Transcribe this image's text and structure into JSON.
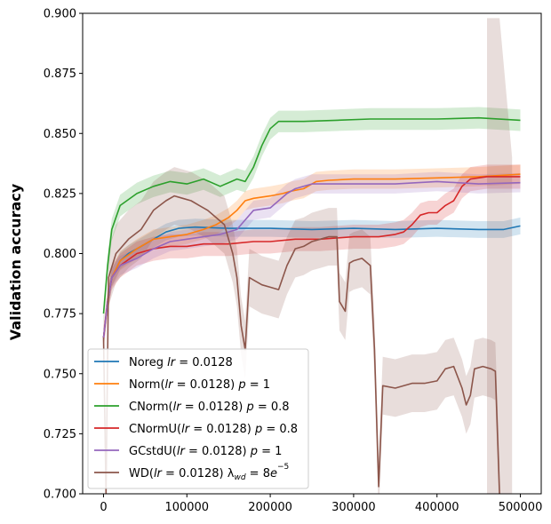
{
  "chart_data": {
    "type": "line",
    "title": "",
    "xlabel": "",
    "ylabel": "Validation accuracy",
    "xlim": [
      -25000,
      525000
    ],
    "ylim": [
      0.7,
      0.9
    ],
    "xticks": [
      0,
      100000,
      200000,
      300000,
      400000,
      500000
    ],
    "xtick_labels": [
      "0",
      "100000",
      "200000",
      "300000",
      "400000",
      "500000"
    ],
    "yticks": [
      0.7,
      0.725,
      0.75,
      0.775,
      0.8,
      0.825,
      0.85,
      0.875,
      0.9
    ],
    "ytick_labels": [
      "0.700",
      "0.725",
      "0.750",
      "0.775",
      "0.800",
      "0.825",
      "0.850",
      "0.875",
      "0.900"
    ],
    "grid": false,
    "legend_position": "lower-left",
    "series": [
      {
        "name": "Noreg lr=0.0128",
        "legend_parts": [
          "Noreg ",
          "lr",
          " = 0.0128"
        ],
        "color": "#1f77b4",
        "band": 0.0035,
        "points": [
          [
            0,
            0.765
          ],
          [
            5000,
            0.78
          ],
          [
            10000,
            0.79
          ],
          [
            20000,
            0.797
          ],
          [
            30000,
            0.8
          ],
          [
            45000,
            0.803
          ],
          [
            60000,
            0.806
          ],
          [
            75000,
            0.809
          ],
          [
            90000,
            0.8105
          ],
          [
            110000,
            0.811
          ],
          [
            150000,
            0.8105
          ],
          [
            200000,
            0.8105
          ],
          [
            250000,
            0.81
          ],
          [
            300000,
            0.8105
          ],
          [
            350000,
            0.81
          ],
          [
            400000,
            0.8105
          ],
          [
            450000,
            0.81
          ],
          [
            480000,
            0.81
          ],
          [
            500000,
            0.8115
          ]
        ]
      },
      {
        "name": "Norm(lr=0.0128) p=1",
        "legend_parts": [
          "Norm(",
          "lr",
          " = 0.0128) ",
          "p",
          " = 1"
        ],
        "color": "#ff7f0e",
        "band": 0.004,
        "points": [
          [
            0,
            0.765
          ],
          [
            5000,
            0.78
          ],
          [
            10000,
            0.79
          ],
          [
            20000,
            0.797
          ],
          [
            40000,
            0.802
          ],
          [
            60000,
            0.806
          ],
          [
            80000,
            0.807
          ],
          [
            100000,
            0.808
          ],
          [
            120000,
            0.81
          ],
          [
            135000,
            0.812
          ],
          [
            150000,
            0.815
          ],
          [
            160000,
            0.818
          ],
          [
            170000,
            0.822
          ],
          [
            180000,
            0.823
          ],
          [
            200000,
            0.824
          ],
          [
            215000,
            0.825
          ],
          [
            225000,
            0.826
          ],
          [
            240000,
            0.827
          ],
          [
            255000,
            0.83
          ],
          [
            270000,
            0.8305
          ],
          [
            300000,
            0.831
          ],
          [
            350000,
            0.831
          ],
          [
            400000,
            0.8315
          ],
          [
            450000,
            0.832
          ],
          [
            500000,
            0.833
          ]
        ]
      },
      {
        "name": "CNorm(lr=0.0128) p=0.8",
        "legend_parts": [
          "CNorm(",
          "lr",
          " = 0.0128) ",
          "p",
          " = 0.8"
        ],
        "color": "#2ca02c",
        "band": 0.0045,
        "points": [
          [
            0,
            0.775
          ],
          [
            5000,
            0.795
          ],
          [
            10000,
            0.81
          ],
          [
            20000,
            0.82
          ],
          [
            40000,
            0.825
          ],
          [
            60000,
            0.828
          ],
          [
            80000,
            0.83
          ],
          [
            100000,
            0.829
          ],
          [
            120000,
            0.831
          ],
          [
            140000,
            0.828
          ],
          [
            160000,
            0.831
          ],
          [
            170000,
            0.83
          ],
          [
            180000,
            0.836
          ],
          [
            190000,
            0.845
          ],
          [
            200000,
            0.852
          ],
          [
            210000,
            0.855
          ],
          [
            240000,
            0.855
          ],
          [
            280000,
            0.8555
          ],
          [
            320000,
            0.856
          ],
          [
            360000,
            0.856
          ],
          [
            400000,
            0.856
          ],
          [
            450000,
            0.8565
          ],
          [
            500000,
            0.8555
          ]
        ]
      },
      {
        "name": "CNormU(lr=0.0128) p=0.8",
        "legend_parts": [
          "CNormU(",
          "lr",
          " = 0.0128) ",
          "p",
          " = 0.8"
        ],
        "color": "#d62728",
        "band": 0.005,
        "points": [
          [
            0,
            0.765
          ],
          [
            5000,
            0.78
          ],
          [
            10000,
            0.79
          ],
          [
            20000,
            0.795
          ],
          [
            40000,
            0.8
          ],
          [
            60000,
            0.802
          ],
          [
            80000,
            0.803
          ],
          [
            100000,
            0.803
          ],
          [
            120000,
            0.804
          ],
          [
            150000,
            0.804
          ],
          [
            180000,
            0.805
          ],
          [
            200000,
            0.805
          ],
          [
            230000,
            0.806
          ],
          [
            260000,
            0.806
          ],
          [
            300000,
            0.807
          ],
          [
            330000,
            0.807
          ],
          [
            350000,
            0.808
          ],
          [
            360000,
            0.809
          ],
          [
            370000,
            0.812
          ],
          [
            380000,
            0.816
          ],
          [
            390000,
            0.817
          ],
          [
            400000,
            0.817
          ],
          [
            410000,
            0.82
          ],
          [
            420000,
            0.822
          ],
          [
            430000,
            0.828
          ],
          [
            440000,
            0.831
          ],
          [
            460000,
            0.832
          ],
          [
            500000,
            0.832
          ]
        ]
      },
      {
        "name": "GCstdU(lr=0.0128) p=1",
        "legend_parts": [
          "GCstdU(",
          "lr",
          " = 0.0128) ",
          "p",
          " = 1"
        ],
        "color": "#9467bd",
        "band": 0.004,
        "points": [
          [
            0,
            0.765
          ],
          [
            5000,
            0.78
          ],
          [
            10000,
            0.79
          ],
          [
            20000,
            0.795
          ],
          [
            40000,
            0.798
          ],
          [
            60000,
            0.802
          ],
          [
            80000,
            0.805
          ],
          [
            100000,
            0.806
          ],
          [
            120000,
            0.807
          ],
          [
            140000,
            0.808
          ],
          [
            160000,
            0.81
          ],
          [
            170000,
            0.814
          ],
          [
            180000,
            0.818
          ],
          [
            200000,
            0.819
          ],
          [
            210000,
            0.822
          ],
          [
            220000,
            0.825
          ],
          [
            230000,
            0.827
          ],
          [
            240000,
            0.828
          ],
          [
            250000,
            0.829
          ],
          [
            300000,
            0.829
          ],
          [
            350000,
            0.829
          ],
          [
            400000,
            0.83
          ],
          [
            450000,
            0.829
          ],
          [
            500000,
            0.8295
          ]
        ]
      },
      {
        "name": "WD(lr=0.0128) λwd=8e−5",
        "legend_parts": [
          "WD(",
          "lr",
          " = 0.0128) ",
          "λ",
          "wd",
          " = 8",
          "e",
          "−5"
        ],
        "color": "#8c564b",
        "band": 0.012,
        "band_special": [
          [
            460000,
            0.7,
            0.898
          ],
          [
            475000,
            0.7,
            0.898
          ],
          [
            490000,
            0.7,
            0.84
          ]
        ],
        "points": [
          [
            0,
            0.765
          ],
          [
            3000,
            0.7
          ],
          [
            6000,
            0.79
          ],
          [
            15000,
            0.8
          ],
          [
            30000,
            0.806
          ],
          [
            45000,
            0.81
          ],
          [
            60000,
            0.818
          ],
          [
            75000,
            0.822
          ],
          [
            85000,
            0.824
          ],
          [
            95000,
            0.823
          ],
          [
            105000,
            0.822
          ],
          [
            115000,
            0.82
          ],
          [
            125000,
            0.818
          ],
          [
            135000,
            0.815
          ],
          [
            145000,
            0.812
          ],
          [
            150000,
            0.806
          ],
          [
            155000,
            0.8
          ],
          [
            160000,
            0.79
          ],
          [
            165000,
            0.77
          ],
          [
            170000,
            0.76
          ],
          [
            175000,
            0.79
          ],
          [
            180000,
            0.789
          ],
          [
            190000,
            0.787
          ],
          [
            200000,
            0.786
          ],
          [
            210000,
            0.785
          ],
          [
            220000,
            0.795
          ],
          [
            230000,
            0.802
          ],
          [
            240000,
            0.803
          ],
          [
            250000,
            0.805
          ],
          [
            260000,
            0.806
          ],
          [
            270000,
            0.807
          ],
          [
            280000,
            0.807
          ],
          [
            283000,
            0.78
          ],
          [
            290000,
            0.776
          ],
          [
            295000,
            0.796
          ],
          [
            300000,
            0.797
          ],
          [
            310000,
            0.798
          ],
          [
            320000,
            0.795
          ],
          [
            325000,
            0.76
          ],
          [
            330000,
            0.703
          ],
          [
            335000,
            0.745
          ],
          [
            350000,
            0.744
          ],
          [
            370000,
            0.746
          ],
          [
            385000,
            0.746
          ],
          [
            400000,
            0.747
          ],
          [
            410000,
            0.752
          ],
          [
            420000,
            0.753
          ],
          [
            430000,
            0.744
          ],
          [
            435000,
            0.737
          ],
          [
            440000,
            0.741
          ],
          [
            445000,
            0.752
          ],
          [
            455000,
            0.753
          ],
          [
            465000,
            0.752
          ],
          [
            470000,
            0.751
          ],
          [
            475000,
            0.7
          ]
        ]
      }
    ]
  }
}
